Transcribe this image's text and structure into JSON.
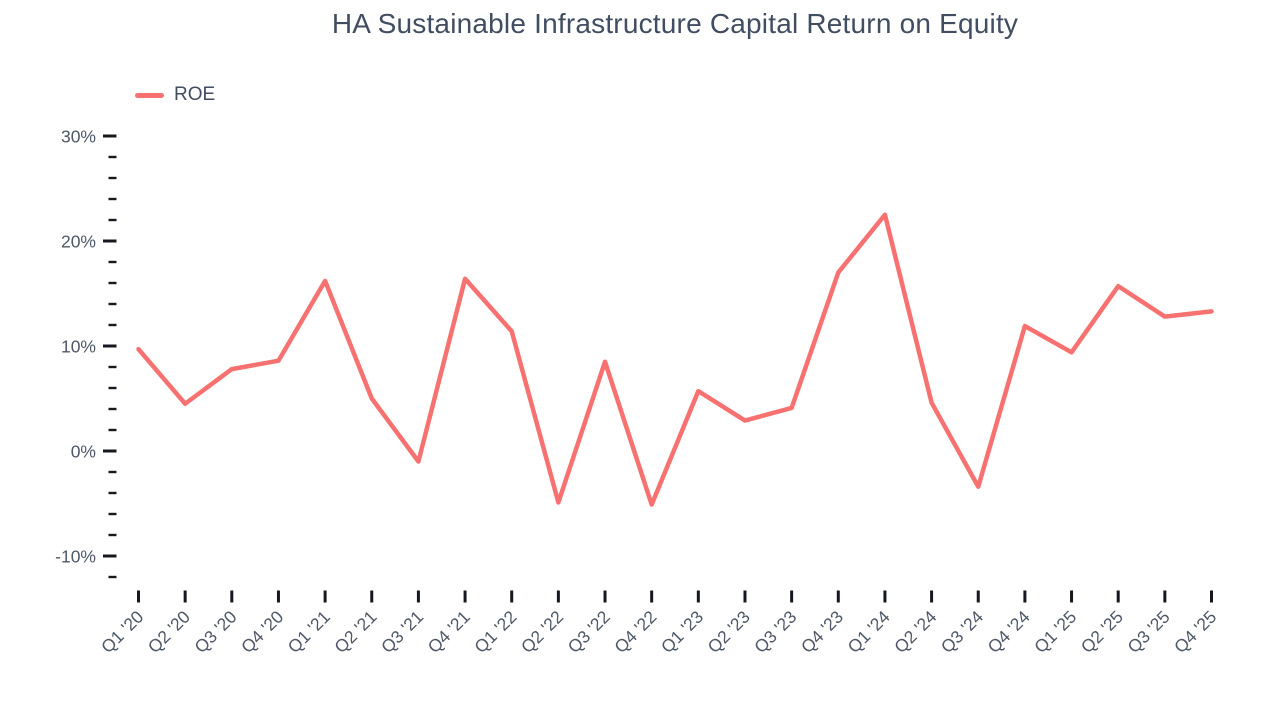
{
  "chart_data": {
    "type": "line",
    "title": "HA Sustainable Infrastructure Capital Return on Equity",
    "xlabel": "",
    "ylabel": "",
    "grid": false,
    "legend_position": "top-left",
    "background_color": "#ffffff",
    "line_color": "#f87171",
    "text_color": "#4d5868",
    "tick_color": "#15181e",
    "legend": [
      {
        "label": "ROE",
        "color": "#f87171"
      }
    ],
    "categories": [
      "Q1 '20",
      "Q2 '20",
      "Q3 '20",
      "Q4 '20",
      "Q1 '21",
      "Q2 '21",
      "Q3 '21",
      "Q4 '21",
      "Q1 '22",
      "Q2 '22",
      "Q3 '22",
      "Q4 '22",
      "Q1 '23",
      "Q2 '23",
      "Q3 '23",
      "Q4 '23",
      "Q1 '24",
      "Q2 '24",
      "Q3 '24",
      "Q4 '24",
      "Q1 '25",
      "Q2 '25",
      "Q3 '25",
      "Q4 '25"
    ],
    "series": [
      {
        "name": "ROE",
        "unit": "%",
        "values": [
          9.7,
          4.5,
          7.8,
          8.6,
          16.2,
          5.0,
          -1.0,
          16.4,
          11.4,
          -4.9,
          8.5,
          -5.1,
          5.7,
          2.9,
          4.1,
          17.0,
          22.5,
          4.6,
          -3.4,
          11.9,
          9.4,
          15.7,
          12.8,
          13.3
        ]
      }
    ],
    "y_axis": {
      "unit": "%",
      "range": [
        -12,
        30
      ],
      "minor_tick_step": 2,
      "major_ticks": [
        {
          "value": 30,
          "label": "30%"
        },
        {
          "value": 20,
          "label": "20%"
        },
        {
          "value": 10,
          "label": "10%"
        },
        {
          "value": 0,
          "label": "0%"
        },
        {
          "value": -10,
          "label": "-10%"
        }
      ]
    }
  }
}
